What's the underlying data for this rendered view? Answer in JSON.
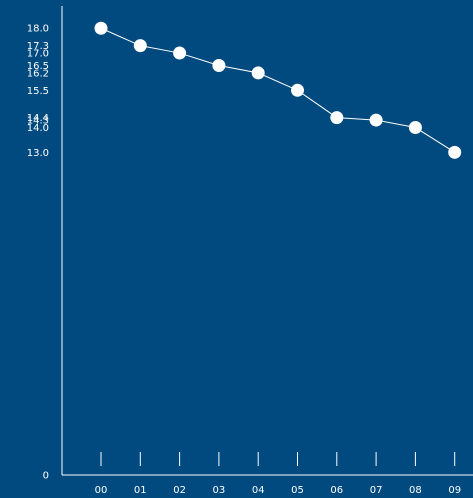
{
  "colors": {
    "background": "#004A7F",
    "axis": "#FFFFFF",
    "line": "#FFFFFF",
    "marker": "#FFFFFF",
    "text": "#FFFFFF"
  },
  "chart_data": {
    "type": "line",
    "title": "",
    "xlabel": "",
    "ylabel": "",
    "categories": [
      "00",
      "01",
      "02",
      "03",
      "04",
      "05",
      "06",
      "07",
      "08",
      "09"
    ],
    "series": [
      {
        "values": [
          18.0,
          17.3,
          17.0,
          16.5,
          16.2,
          15.5,
          14.4,
          14.3,
          14.0,
          13.0
        ]
      }
    ],
    "y_tick_labels": [
      "18.0",
      "17.3",
      "17.0",
      "16.5",
      "16.2",
      "15.5",
      "14.4",
      "14.3",
      "14.0",
      "13.0",
      "0"
    ],
    "ylim": [
      0,
      19
    ],
    "grid": false,
    "legend": "none"
  }
}
